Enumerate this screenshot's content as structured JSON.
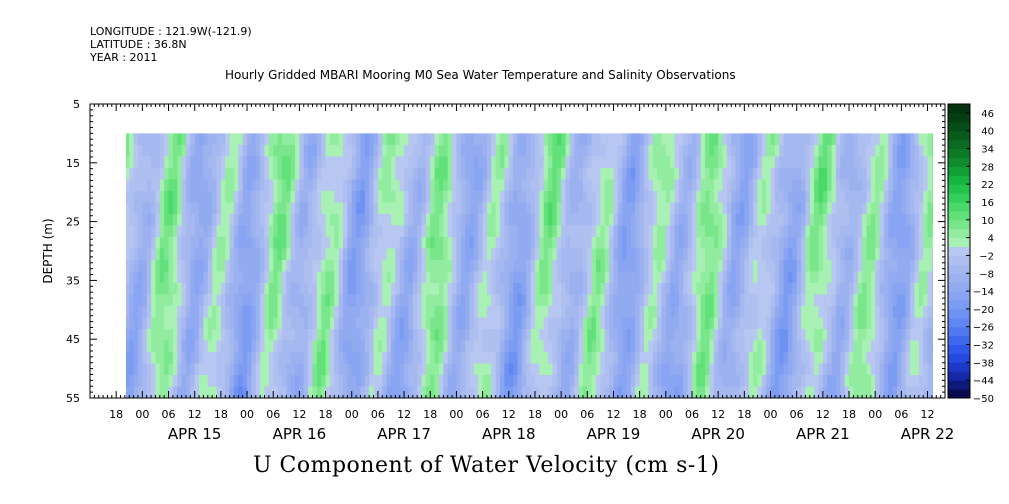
{
  "header": {
    "longitude": "LONGITUDE : 121.9W(-121.9)",
    "latitude": "LATITUDE : 36.8N",
    "year": "YEAR : 2011"
  },
  "chart_data": {
    "type": "heatmap",
    "title": "Hourly Gridded MBARI Mooring M0 Sea Water Temperature and Salinity Observations",
    "xlabel": "U Component of Water Velocity (cm s-1)",
    "ylabel": "DEPTH (m)",
    "ylim": [
      5,
      55
    ],
    "y_inverted": true,
    "y_ticks": [
      5,
      15,
      25,
      35,
      45,
      55
    ],
    "data_depth_range": [
      10,
      55
    ],
    "x_start": "2011-04-14T12:00",
    "x_end": "2011-04-22T16:00",
    "x_hour_ticks": [
      "18",
      "00",
      "06",
      "12",
      "18",
      "00",
      "06",
      "12",
      "18",
      "00",
      "06",
      "12",
      "18",
      "00",
      "06",
      "12",
      "18",
      "00",
      "06",
      "12",
      "18",
      "00",
      "06",
      "12",
      "18",
      "00",
      "06",
      "12",
      "18",
      "00",
      "06",
      "12"
    ],
    "x_day_labels": [
      "APR 15",
      "APR 16",
      "APR 17",
      "APR 18",
      "APR 19",
      "APR 20",
      "APR 21",
      "APR 22"
    ],
    "grid": false,
    "colorbar": {
      "placement": "right",
      "labels": [
        "46",
        "40",
        "34",
        "28",
        "22",
        "16",
        "10",
        "4",
        "-2",
        "-8",
        "-14",
        "-20",
        "-26",
        "-32",
        "-38",
        "-44",
        "-50"
      ],
      "levels": [
        -50,
        -47,
        -44,
        -41,
        -38,
        -35,
        -32,
        -29,
        -26,
        -23,
        -20,
        -17,
        -14,
        -11,
        -8,
        -5,
        -2,
        1,
        4,
        7,
        10,
        13,
        16,
        19,
        22,
        25,
        28,
        31,
        34,
        37,
        40,
        43,
        46,
        49
      ],
      "colors": [
        "#0a0a4e",
        "#0d1a7a",
        "#1428a8",
        "#1c38c8",
        "#2548e0",
        "#3058ea",
        "#3f68ee",
        "#5078f0",
        "#5f86f2",
        "#6e92f2",
        "#7c9cf2",
        "#88a4f2",
        "#92abf0",
        "#9cb2f0",
        "#a5b8f0",
        "#aebff0",
        "#b8c6f2",
        "#a8f0b4",
        "#92eca0",
        "#7ae68c",
        "#62e07a",
        "#4ad86a",
        "#34ce5a",
        "#22c24c",
        "#16b440",
        "#12a036",
        "#108c2e",
        "#0e7a28",
        "#0c6a22",
        "#0a5a1c",
        "#084c18",
        "#063e14",
        "#043210"
      ]
    }
  }
}
